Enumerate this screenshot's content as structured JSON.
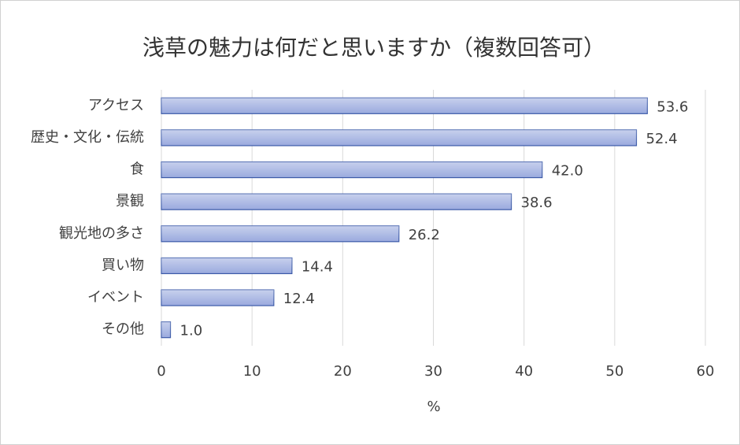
{
  "chart_data": {
    "type": "hbar",
    "title": "浅草の魅力は何だと思いますか（複数回答可）",
    "categories": [
      "アクセス",
      "歴史・文化・伝統",
      "食",
      "景観",
      "観光地の多さ",
      "買い物",
      "イベント",
      "その他"
    ],
    "values": [
      53.6,
      52.4,
      42.0,
      38.6,
      26.2,
      14.4,
      12.4,
      1.0
    ],
    "value_labels": [
      "53.6",
      "52.4",
      "42.0",
      "38.6",
      "26.2",
      "14.4",
      "12.4",
      "1.0"
    ],
    "color": "#9aaade",
    "xlabel": "%",
    "xlim": [
      0,
      60
    ],
    "xticks": [
      0,
      10,
      20,
      30,
      40,
      50,
      60
    ],
    "grid": true
  }
}
